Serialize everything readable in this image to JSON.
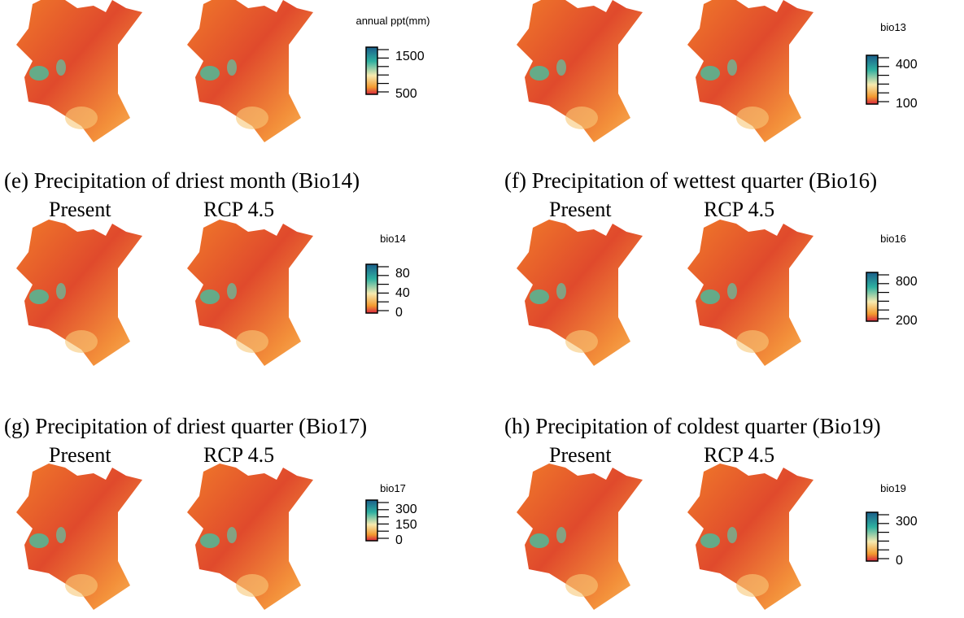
{
  "panels": [
    {
      "legend": {
        "title": "annual ppt(mm)",
        "labels": [
          "1500",
          "500"
        ]
      }
    },
    {
      "legend": {
        "title": "bio13",
        "labels": [
          "400",
          "100"
        ]
      }
    },
    {
      "title": "(e) Precipitation of driest month (Bio14)",
      "scenarios": [
        "Present",
        "RCP 4.5"
      ],
      "legend": {
        "title": "bio14",
        "labels": [
          "80",
          "40",
          "0"
        ]
      }
    },
    {
      "title": "(f) Precipitation of wettest quarter (Bio16)",
      "scenarios": [
        "Present",
        "RCP 4.5"
      ],
      "legend": {
        "title": "bio16",
        "labels": [
          "800",
          "200"
        ]
      }
    },
    {
      "title": "(g) Precipitation of driest quarter (Bio17)",
      "scenarios": [
        "Present",
        "RCP 4.5"
      ],
      "legend": {
        "title": "bio17",
        "labels": [
          "300",
          "150",
          "0"
        ]
      }
    },
    {
      "title": "(h) Precipitation of coldest quarter (Bio19)",
      "scenarios": [
        "Present",
        "RCP 4.5"
      ],
      "legend": {
        "title": "bio19",
        "labels": [
          "300",
          "0"
        ]
      }
    }
  ]
}
